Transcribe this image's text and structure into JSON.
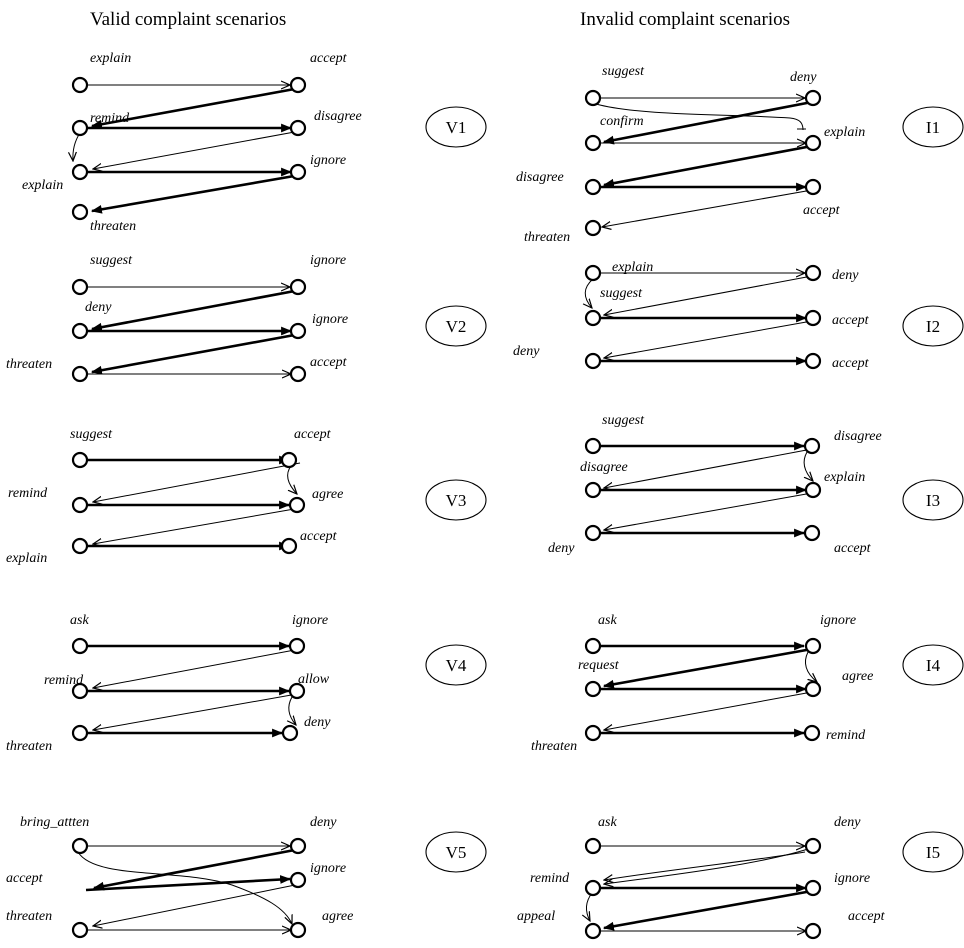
{
  "headers": {
    "valid": "Valid complaint scenarios",
    "invalid": "Invalid complaint scenarios"
  },
  "scenarios": [
    {
      "id": "V1",
      "labels": [
        "explain",
        "accept",
        "remind",
        "disagree",
        "explain",
        "ignore",
        "threaten"
      ]
    },
    {
      "id": "V2",
      "labels": [
        "suggest",
        "ignore",
        "deny",
        "ignore",
        "threaten",
        "accept"
      ]
    },
    {
      "id": "V3",
      "labels": [
        "suggest",
        "accept",
        "remind",
        "agree",
        "explain",
        "accept"
      ]
    },
    {
      "id": "V4",
      "labels": [
        "ask",
        "ignore",
        "remind",
        "allow",
        "deny",
        "threaten"
      ]
    },
    {
      "id": "V5",
      "labels": [
        "bring_attten",
        "deny",
        "accept",
        "ignore",
        "threaten",
        "agree"
      ]
    },
    {
      "id": "I1",
      "labels": [
        "suggest",
        "deny",
        "confirm",
        "explain",
        "disagree",
        "accept",
        "threaten"
      ]
    },
    {
      "id": "I2",
      "labels": [
        "explain",
        "deny",
        "suggest",
        "accept",
        "deny",
        "accept"
      ]
    },
    {
      "id": "I3",
      "labels": [
        "suggest",
        "disagree",
        "disagree",
        "explain",
        "deny",
        "accept"
      ]
    },
    {
      "id": "I4",
      "labels": [
        "ask",
        "ignore",
        "request",
        "agree",
        "threaten",
        "remind"
      ]
    },
    {
      "id": "I5",
      "labels": [
        "ask",
        "deny",
        "remind",
        "ignore",
        "appeal",
        "accept"
      ]
    }
  ]
}
